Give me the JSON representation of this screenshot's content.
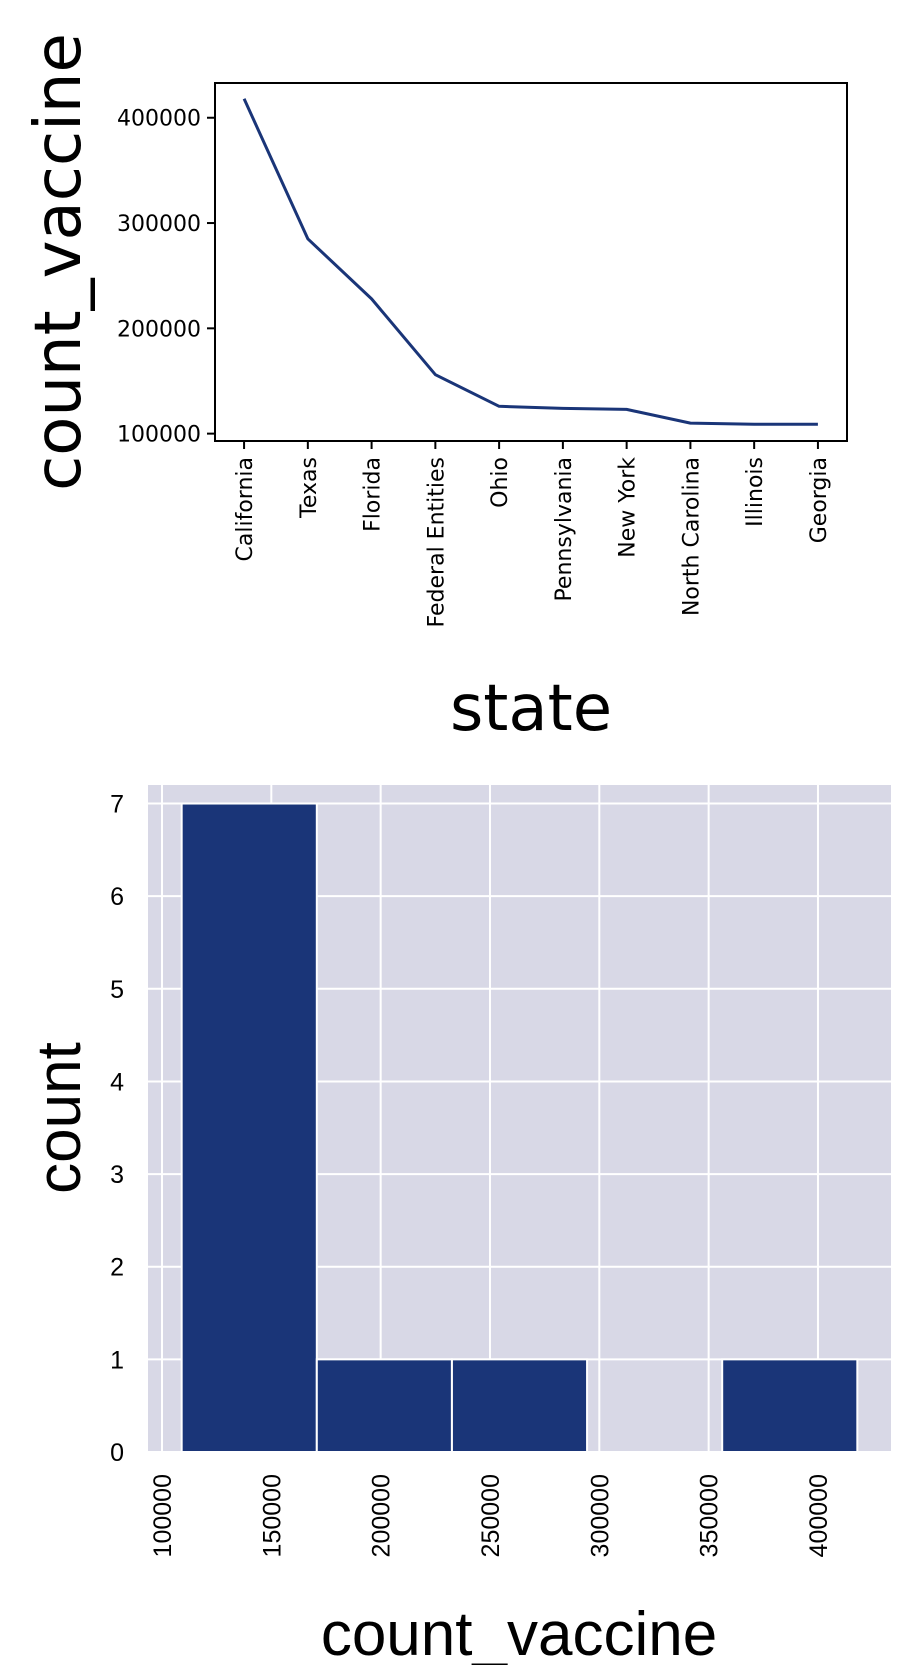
{
  "chart_data": [
    {
      "type": "line",
      "categories": [
        "California",
        "Texas",
        "Florida",
        "Federal Entities",
        "Ohio",
        "Pennsylvania",
        "New York",
        "North Carolina",
        "Illinois",
        "Georgia"
      ],
      "values": [
        418000,
        285000,
        228000,
        156000,
        126000,
        124000,
        123000,
        110000,
        109000,
        109000
      ],
      "xlabel": "state",
      "ylabel": "count_vaccine",
      "yticks": [
        "100000",
        "200000",
        "300000",
        "400000"
      ],
      "ytick_values": [
        100000,
        200000,
        300000,
        400000
      ],
      "ylim": [
        93000,
        433000
      ],
      "grid": false,
      "colors": {
        "line": "#1a3578"
      }
    },
    {
      "type": "bar",
      "subtype": "histogram",
      "bins": [
        {
          "start": 109000,
          "end": 170800,
          "count": 7
        },
        {
          "start": 170800,
          "end": 232600,
          "count": 1
        },
        {
          "start": 232600,
          "end": 294400,
          "count": 1
        },
        {
          "start": 294400,
          "end": 356200,
          "count": 0
        },
        {
          "start": 356200,
          "end": 418000,
          "count": 1
        }
      ],
      "xlabel": "count_vaccine",
      "ylabel": "count",
      "xticks": [
        "100000",
        "150000",
        "200000",
        "250000",
        "300000",
        "350000",
        "400000"
      ],
      "xtick_values": [
        100000,
        150000,
        200000,
        250000,
        300000,
        350000,
        400000
      ],
      "yticks": [
        "0",
        "1",
        "2",
        "3",
        "4",
        "5",
        "6",
        "7"
      ],
      "ytick_values": [
        0,
        1,
        2,
        3,
        4,
        5,
        6,
        7
      ],
      "xlim": [
        93600,
        433400
      ],
      "ylim": [
        0,
        7.2
      ],
      "grid": true,
      "colors": {
        "bar": "#1a3578",
        "background": "#d8d8e6",
        "grid": "#ffffff"
      }
    }
  ]
}
